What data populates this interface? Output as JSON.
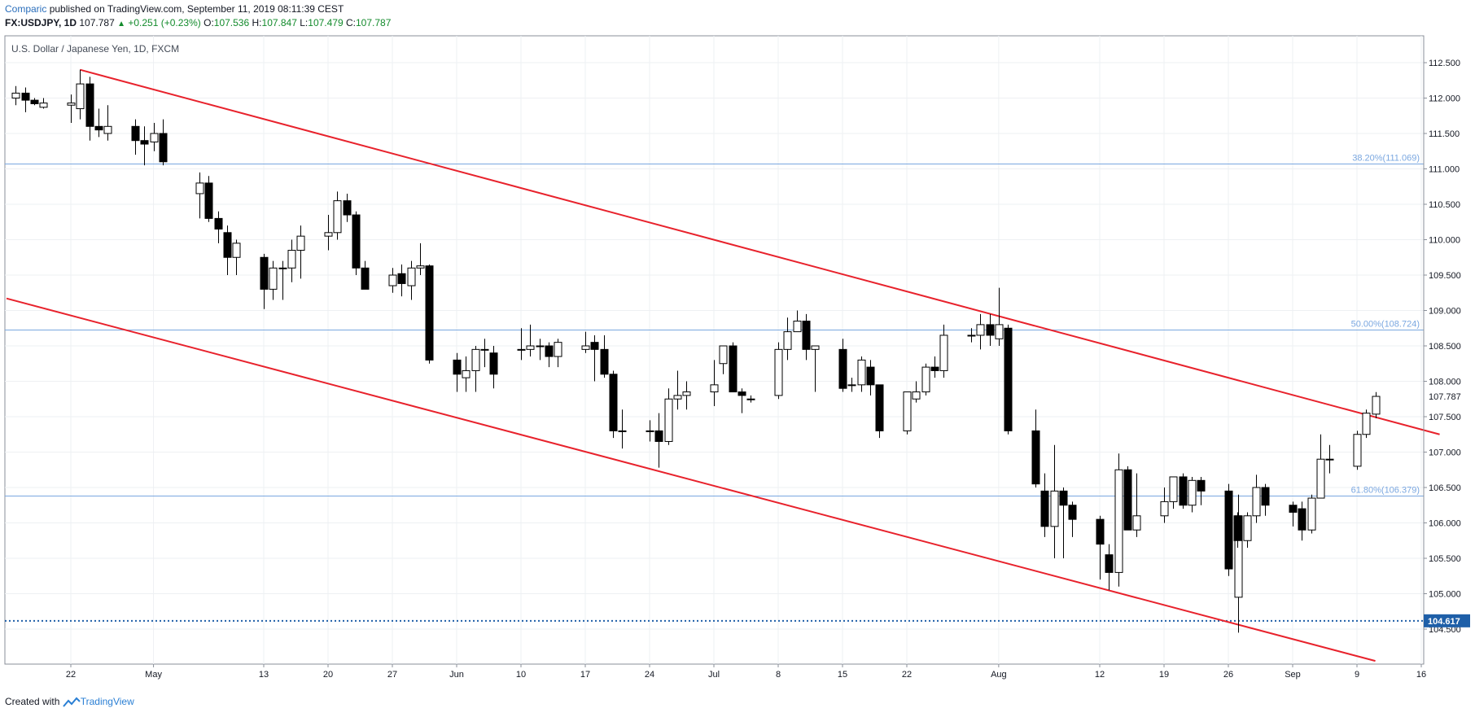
{
  "header": {
    "author": "Comparic",
    "published_text": "published on TradingView.com, September 11, 2019 08:11:39 CEST",
    "symbol": "FX:USDJPY, 1D",
    "last": "107.787",
    "change": "+0.251 (+0.23%)",
    "o_label": "O:",
    "o_value": "107.536",
    "h_label": "H:",
    "h_value": "107.847",
    "l_label": "L:",
    "l_value": "107.479",
    "c_label": "C:",
    "c_value": "107.787"
  },
  "footer": {
    "created_with": "Created with",
    "brand": "TradingView"
  },
  "chart_data": {
    "type": "candlestick",
    "title": "U.S. Dollar / Japanese Yen, 1D, FXCM",
    "colors": {
      "up_fill": "#ffffff",
      "down_fill": "#000000",
      "channel": "#e8222c",
      "fib": "#7aa7e0",
      "support": "#1e5fa8",
      "grid": "#eef0f3"
    },
    "ylim": [
      104.1,
      112.9
    ],
    "yticks": [
      104.5,
      105.0,
      105.5,
      106.0,
      106.5,
      107.0,
      107.5,
      108.0,
      108.5,
      109.0,
      109.5,
      110.0,
      110.5,
      111.0,
      111.5,
      112.0,
      112.5
    ],
    "ytick_labels": [
      "104.500",
      "105.000",
      "105.500",
      "106.000",
      "106.500",
      "107.000",
      "107.500",
      "108.000",
      "108.500",
      "109.000",
      "109.500",
      "110.000",
      "110.500",
      "111.000",
      "111.500",
      "112.000",
      "112.500"
    ],
    "xticks": [
      {
        "label": "22",
        "date": "2019-04-22"
      },
      {
        "label": "May",
        "date": "2019-05-01"
      },
      {
        "label": "13",
        "date": "2019-05-13"
      },
      {
        "label": "20",
        "date": "2019-05-20"
      },
      {
        "label": "27",
        "date": "2019-05-27"
      },
      {
        "label": "Jun",
        "date": "2019-06-03"
      },
      {
        "label": "10",
        "date": "2019-06-10"
      },
      {
        "label": "17",
        "date": "2019-06-17"
      },
      {
        "label": "24",
        "date": "2019-06-24"
      },
      {
        "label": "Jul",
        "date": "2019-07-01"
      },
      {
        "label": "8",
        "date": "2019-07-08"
      },
      {
        "label": "15",
        "date": "2019-07-15"
      },
      {
        "label": "22",
        "date": "2019-07-22"
      },
      {
        "label": "Aug",
        "date": "2019-08-01"
      },
      {
        "label": "12",
        "date": "2019-08-12"
      },
      {
        "label": "19",
        "date": "2019-08-19"
      },
      {
        "label": "26",
        "date": "2019-08-26"
      },
      {
        "label": "Sep",
        "date": "2019-09-02"
      },
      {
        "label": "9",
        "date": "2019-09-09"
      },
      {
        "label": "16",
        "date": "2019-09-16"
      }
    ],
    "candles": [
      {
        "d": "2019-04-16",
        "o": 112.0,
        "h": 112.17,
        "l": 111.9,
        "c": 112.07
      },
      {
        "d": "2019-04-17",
        "o": 112.07,
        "h": 112.15,
        "l": 111.8,
        "c": 111.97
      },
      {
        "d": "2019-04-18",
        "o": 111.97,
        "h": 112.0,
        "l": 111.9,
        "c": 111.92
      },
      {
        "d": "2019-04-19",
        "o": 111.87,
        "h": 112.0,
        "l": 111.85,
        "c": 111.93
      },
      {
        "d": "2019-04-22",
        "o": 111.9,
        "h": 112.05,
        "l": 111.65,
        "c": 111.93
      },
      {
        "d": "2019-04-23",
        "o": 111.85,
        "h": 112.4,
        "l": 111.7,
        "c": 112.2
      },
      {
        "d": "2019-04-24",
        "o": 112.2,
        "h": 112.3,
        "l": 111.4,
        "c": 111.6
      },
      {
        "d": "2019-04-25",
        "o": 111.6,
        "h": 111.85,
        "l": 111.45,
        "c": 111.55
      },
      {
        "d": "2019-04-26",
        "o": 111.5,
        "h": 111.9,
        "l": 111.4,
        "c": 111.6
      },
      {
        "d": "2019-04-29",
        "o": 111.6,
        "h": 111.7,
        "l": 111.2,
        "c": 111.4
      },
      {
        "d": "2019-04-30",
        "o": 111.4,
        "h": 111.6,
        "l": 111.05,
        "c": 111.35
      },
      {
        "d": "2019-05-01",
        "o": 111.38,
        "h": 111.65,
        "l": 111.25,
        "c": 111.5
      },
      {
        "d": "2019-05-02",
        "o": 111.5,
        "h": 111.7,
        "l": 111.05,
        "c": 111.1
      },
      {
        "d": "2019-05-06",
        "o": 110.65,
        "h": 110.95,
        "l": 110.3,
        "c": 110.8
      },
      {
        "d": "2019-05-07",
        "o": 110.8,
        "h": 110.9,
        "l": 110.25,
        "c": 110.3
      },
      {
        "d": "2019-05-08",
        "o": 110.3,
        "h": 110.4,
        "l": 109.95,
        "c": 110.15
      },
      {
        "d": "2019-05-09",
        "o": 110.1,
        "h": 110.2,
        "l": 109.5,
        "c": 109.75
      },
      {
        "d": "2019-05-10",
        "o": 109.75,
        "h": 110.0,
        "l": 109.5,
        "c": 109.95
      },
      {
        "d": "2019-05-13",
        "o": 109.75,
        "h": 109.8,
        "l": 109.02,
        "c": 109.3
      },
      {
        "d": "2019-05-14",
        "o": 109.3,
        "h": 109.7,
        "l": 109.15,
        "c": 109.6
      },
      {
        "d": "2019-05-15",
        "o": 109.6,
        "h": 109.7,
        "l": 109.15,
        "c": 109.6
      },
      {
        "d": "2019-05-16",
        "o": 109.6,
        "h": 110.0,
        "l": 109.4,
        "c": 109.85
      },
      {
        "d": "2019-05-17",
        "o": 109.85,
        "h": 110.2,
        "l": 109.45,
        "c": 110.05
      },
      {
        "d": "2019-05-20",
        "o": 110.05,
        "h": 110.35,
        "l": 109.85,
        "c": 110.1
      },
      {
        "d": "2019-05-21",
        "o": 110.1,
        "h": 110.68,
        "l": 110.0,
        "c": 110.55
      },
      {
        "d": "2019-05-22",
        "o": 110.55,
        "h": 110.65,
        "l": 110.25,
        "c": 110.35
      },
      {
        "d": "2019-05-23",
        "o": 110.35,
        "h": 110.4,
        "l": 109.5,
        "c": 109.6
      },
      {
        "d": "2019-05-24",
        "o": 109.6,
        "h": 109.7,
        "l": 109.3,
        "c": 109.3
      },
      {
        "d": "2019-05-27",
        "o": 109.35,
        "h": 109.6,
        "l": 109.25,
        "c": 109.5
      },
      {
        "d": "2019-05-28",
        "o": 109.52,
        "h": 109.65,
        "l": 109.2,
        "c": 109.38
      },
      {
        "d": "2019-05-29",
        "o": 109.35,
        "h": 109.7,
        "l": 109.15,
        "c": 109.6
      },
      {
        "d": "2019-05-30",
        "o": 109.6,
        "h": 109.95,
        "l": 109.5,
        "c": 109.63
      },
      {
        "d": "2019-05-31",
        "o": 109.63,
        "h": 109.65,
        "l": 108.25,
        "c": 108.3
      },
      {
        "d": "2019-06-03",
        "o": 108.3,
        "h": 108.4,
        "l": 107.85,
        "c": 108.1
      },
      {
        "d": "2019-06-04",
        "o": 108.05,
        "h": 108.35,
        "l": 107.85,
        "c": 108.15
      },
      {
        "d": "2019-06-05",
        "o": 108.15,
        "h": 108.5,
        "l": 107.85,
        "c": 108.45
      },
      {
        "d": "2019-06-06",
        "o": 108.45,
        "h": 108.6,
        "l": 108.2,
        "c": 108.45
      },
      {
        "d": "2019-06-07",
        "o": 108.4,
        "h": 108.5,
        "l": 107.9,
        "c": 108.1
      },
      {
        "d": "2019-06-10",
        "o": 108.45,
        "h": 108.75,
        "l": 108.3,
        "c": 108.45
      },
      {
        "d": "2019-06-11",
        "o": 108.45,
        "h": 108.8,
        "l": 108.35,
        "c": 108.5
      },
      {
        "d": "2019-06-12",
        "o": 108.5,
        "h": 108.6,
        "l": 108.3,
        "c": 108.5
      },
      {
        "d": "2019-06-13",
        "o": 108.5,
        "h": 108.55,
        "l": 108.2,
        "c": 108.35
      },
      {
        "d": "2019-06-14",
        "o": 108.35,
        "h": 108.6,
        "l": 108.2,
        "c": 108.55
      },
      {
        "d": "2019-06-17",
        "o": 108.45,
        "h": 108.7,
        "l": 108.4,
        "c": 108.5
      },
      {
        "d": "2019-06-18",
        "o": 108.55,
        "h": 108.65,
        "l": 108.0,
        "c": 108.45
      },
      {
        "d": "2019-06-19",
        "o": 108.45,
        "h": 108.65,
        "l": 108.05,
        "c": 108.1
      },
      {
        "d": "2019-06-20",
        "o": 108.1,
        "h": 108.15,
        "l": 107.2,
        "c": 107.3
      },
      {
        "d": "2019-06-21",
        "o": 107.3,
        "h": 107.6,
        "l": 107.05,
        "c": 107.3
      },
      {
        "d": "2019-06-24",
        "o": 107.3,
        "h": 107.45,
        "l": 107.15,
        "c": 107.3
      },
      {
        "d": "2019-06-25",
        "o": 107.3,
        "h": 107.55,
        "l": 106.78,
        "c": 107.15
      },
      {
        "d": "2019-06-26",
        "o": 107.15,
        "h": 107.9,
        "l": 107.1,
        "c": 107.75
      },
      {
        "d": "2019-06-27",
        "o": 107.75,
        "h": 108.15,
        "l": 107.6,
        "c": 107.8
      },
      {
        "d": "2019-06-28",
        "o": 107.8,
        "h": 108.0,
        "l": 107.6,
        "c": 107.85
      },
      {
        "d": "2019-07-01",
        "o": 107.85,
        "h": 108.3,
        "l": 107.65,
        "c": 107.95
      },
      {
        "d": "2019-07-02",
        "o": 108.25,
        "h": 108.5,
        "l": 108.1,
        "c": 108.5
      },
      {
        "d": "2019-07-03",
        "o": 108.5,
        "h": 108.55,
        "l": 107.85,
        "c": 107.85
      },
      {
        "d": "2019-07-04",
        "o": 107.85,
        "h": 107.9,
        "l": 107.55,
        "c": 107.8
      },
      {
        "d": "2019-07-05",
        "o": 107.75,
        "h": 107.8,
        "l": 107.7,
        "c": 107.75
      },
      {
        "d": "2019-07-08",
        "o": 107.8,
        "h": 108.55,
        "l": 107.75,
        "c": 108.45
      },
      {
        "d": "2019-07-09",
        "o": 108.45,
        "h": 108.9,
        "l": 108.3,
        "c": 108.7
      },
      {
        "d": "2019-07-10",
        "o": 108.7,
        "h": 109.0,
        "l": 108.7,
        "c": 108.85
      },
      {
        "d": "2019-07-11",
        "o": 108.85,
        "h": 108.95,
        "l": 108.3,
        "c": 108.45
      },
      {
        "d": "2019-07-12",
        "o": 108.45,
        "h": 108.5,
        "l": 107.85,
        "c": 108.5
      },
      {
        "d": "2019-07-15",
        "o": 108.45,
        "h": 108.6,
        "l": 107.85,
        "c": 107.9
      },
      {
        "d": "2019-07-16",
        "o": 107.95,
        "h": 108.05,
        "l": 107.85,
        "c": 107.95
      },
      {
        "d": "2019-07-17",
        "o": 107.95,
        "h": 108.35,
        "l": 107.85,
        "c": 108.3
      },
      {
        "d": "2019-07-18",
        "o": 108.2,
        "h": 108.3,
        "l": 107.8,
        "c": 107.95
      },
      {
        "d": "2019-07-19",
        "o": 107.95,
        "h": 107.95,
        "l": 107.2,
        "c": 107.3
      },
      {
        "d": "2019-07-22",
        "o": 107.3,
        "h": 107.85,
        "l": 107.25,
        "c": 107.85
      },
      {
        "d": "2019-07-23",
        "o": 107.75,
        "h": 108.0,
        "l": 107.7,
        "c": 107.85
      },
      {
        "d": "2019-07-24",
        "o": 107.85,
        "h": 108.25,
        "l": 107.8,
        "c": 108.2
      },
      {
        "d": "2019-07-25",
        "o": 108.2,
        "h": 108.35,
        "l": 108.05,
        "c": 108.15
      },
      {
        "d": "2019-07-26",
        "o": 108.15,
        "h": 108.8,
        "l": 108.05,
        "c": 108.65
      },
      {
        "d": "2019-07-29",
        "o": 108.65,
        "h": 108.75,
        "l": 108.55,
        "c": 108.65
      },
      {
        "d": "2019-07-30",
        "o": 108.65,
        "h": 108.95,
        "l": 108.45,
        "c": 108.8
      },
      {
        "d": "2019-07-31",
        "o": 108.8,
        "h": 108.95,
        "l": 108.5,
        "c": 108.65
      },
      {
        "d": "2019-08-01",
        "o": 108.6,
        "h": 109.32,
        "l": 108.5,
        "c": 108.8
      },
      {
        "d": "2019-08-02",
        "o": 108.75,
        "h": 108.8,
        "l": 107.25,
        "c": 107.3
      },
      {
        "d": "2019-08-05",
        "o": 107.3,
        "h": 107.6,
        "l": 106.5,
        "c": 106.55
      },
      {
        "d": "2019-08-06",
        "o": 106.45,
        "h": 106.7,
        "l": 105.8,
        "c": 105.95
      },
      {
        "d": "2019-08-07",
        "o": 105.95,
        "h": 107.1,
        "l": 105.5,
        "c": 106.45
      },
      {
        "d": "2019-08-08",
        "o": 106.45,
        "h": 106.5,
        "l": 105.5,
        "c": 106.25
      },
      {
        "d": "2019-08-09",
        "o": 106.25,
        "h": 106.3,
        "l": 105.8,
        "c": 106.05
      },
      {
        "d": "2019-08-12",
        "o": 106.05,
        "h": 106.1,
        "l": 105.2,
        "c": 105.7
      },
      {
        "d": "2019-08-13",
        "o": 105.55,
        "h": 105.7,
        "l": 105.05,
        "c": 105.3
      },
      {
        "d": "2019-08-14",
        "o": 105.3,
        "h": 106.98,
        "l": 105.1,
        "c": 106.75
      },
      {
        "d": "2019-08-15",
        "o": 106.75,
        "h": 106.8,
        "l": 105.9,
        "c": 105.9
      },
      {
        "d": "2019-08-16",
        "o": 105.9,
        "h": 106.7,
        "l": 105.8,
        "c": 106.1
      },
      {
        "d": "2019-08-19",
        "o": 106.1,
        "h": 106.5,
        "l": 106.0,
        "c": 106.3
      },
      {
        "d": "2019-08-20",
        "o": 106.3,
        "h": 106.65,
        "l": 106.2,
        "c": 106.65
      },
      {
        "d": "2019-08-21",
        "o": 106.65,
        "h": 106.7,
        "l": 106.2,
        "c": 106.25
      },
      {
        "d": "2019-08-22",
        "o": 106.25,
        "h": 106.65,
        "l": 106.15,
        "c": 106.6
      },
      {
        "d": "2019-08-23",
        "o": 106.6,
        "h": 106.65,
        "l": 106.25,
        "c": 106.45
      },
      {
        "d": "2019-08-26",
        "o": 106.45,
        "h": 106.55,
        "l": 105.25,
        "c": 105.35
      },
      {
        "d": "2019-08-26",
        "o": 104.95,
        "h": 106.4,
        "l": 104.45,
        "c": 106.1
      },
      {
        "d": "2019-08-27",
        "o": 106.1,
        "h": 106.15,
        "l": 105.65,
        "c": 105.75
      },
      {
        "d": "2019-08-28",
        "o": 105.75,
        "h": 106.15,
        "l": 105.65,
        "c": 106.1
      },
      {
        "d": "2019-08-29",
        "o": 106.1,
        "h": 106.68,
        "l": 106.0,
        "c": 106.5
      },
      {
        "d": "2019-08-30",
        "o": 106.5,
        "h": 106.55,
        "l": 106.1,
        "c": 106.25
      },
      {
        "d": "2019-09-02",
        "o": 106.25,
        "h": 106.3,
        "l": 105.95,
        "c": 106.15
      },
      {
        "d": "2019-09-03",
        "o": 106.2,
        "h": 106.3,
        "l": 105.75,
        "c": 105.9
      },
      {
        "d": "2019-09-04",
        "o": 105.9,
        "h": 106.4,
        "l": 105.85,
        "c": 106.35
      },
      {
        "d": "2019-09-05",
        "o": 106.35,
        "h": 107.25,
        "l": 106.35,
        "c": 106.9
      },
      {
        "d": "2019-09-06",
        "o": 106.9,
        "h": 107.1,
        "l": 106.7,
        "c": 106.9
      },
      {
        "d": "2019-09-09",
        "o": 106.8,
        "h": 107.3,
        "l": 106.75,
        "c": 107.25
      },
      {
        "d": "2019-09-10",
        "o": 107.25,
        "h": 107.6,
        "l": 107.2,
        "c": 107.55
      },
      {
        "d": "2019-09-11",
        "o": 107.536,
        "h": 107.847,
        "l": 107.479,
        "c": 107.787
      }
    ],
    "channel_lines": [
      {
        "name": "",
        "from": {
          "d": "2019-04-23",
          "v": 112.4
        },
        "to": {
          "d": "2019-09-18",
          "v": 107.25
        }
      },
      {
        "name": "",
        "from": {
          "d": "2019-04-15",
          "v": 109.17
        },
        "to": {
          "d": "2019-09-11",
          "v": 104.05
        }
      }
    ],
    "fib_levels": [
      {
        "label": "38.20%(111.069)",
        "value": 111.069
      },
      {
        "label": "50.00%(108.724)",
        "value": 108.724
      },
      {
        "label": "61.80%(106.379)",
        "value": 106.379
      }
    ],
    "support": {
      "label": "104.617",
      "value": 104.617
    },
    "last_price": {
      "label": "107.787",
      "value": 107.787
    }
  }
}
